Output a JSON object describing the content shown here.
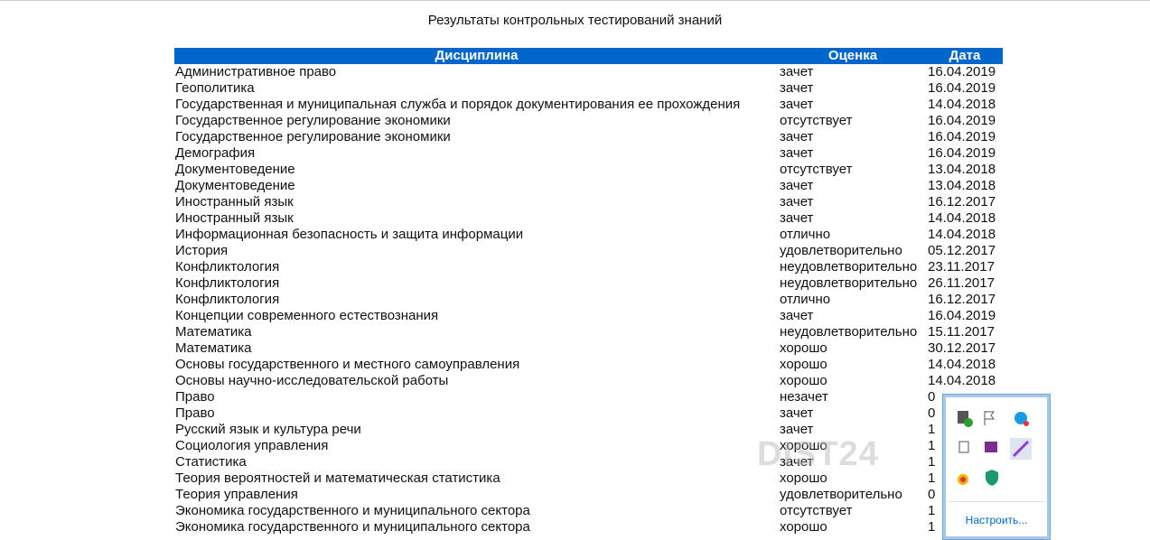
{
  "page": {
    "title": "Результаты контрольных тестирований знаний",
    "table": {
      "headers": [
        "Дисциплина",
        "Оценка",
        "Дата"
      ],
      "rows": [
        [
          "Административное право",
          "зачет",
          "16.04.2019"
        ],
        [
          "Геополитика",
          "зачет",
          "16.04.2019"
        ],
        [
          "Государственная и муниципальная служба и порядок документирования ее прохождения",
          "зачет",
          "14.04.2018"
        ],
        [
          "Государственное регулирование экономики",
          "отсутствует",
          "16.04.2019"
        ],
        [
          "Государственное регулирование экономики",
          "зачет",
          "16.04.2019"
        ],
        [
          "Демография",
          "зачет",
          "16.04.2019"
        ],
        [
          "Документоведение",
          "отсутствует",
          "13.04.2018"
        ],
        [
          "Документоведение",
          "зачет",
          "13.04.2018"
        ],
        [
          "Иностранный язык",
          "зачет",
          "16.12.2017"
        ],
        [
          "Иностранный язык",
          "зачет",
          "14.04.2018"
        ],
        [
          "Информационная безопасность и защита информации",
          "отлично",
          "14.04.2018"
        ],
        [
          "История",
          "удовлетворительно",
          "05.12.2017"
        ],
        [
          "Конфликтология",
          "неудовлетворительно",
          "23.11.2017"
        ],
        [
          "Конфликтология",
          "неудовлетворительно",
          "26.11.2017"
        ],
        [
          "Конфликтология",
          "отлично",
          "16.12.2017"
        ],
        [
          "Концепции современного естествознания",
          "зачет",
          "16.04.2019"
        ],
        [
          "Математика",
          "неудовлетворительно",
          "15.11.2017"
        ],
        [
          "Математика",
          "хорошо",
          "30.12.2017"
        ],
        [
          "Основы государственного и местного самоуправления",
          "хорошо",
          "14.04.2018"
        ],
        [
          "Основы научно-исследовательской работы",
          "хорошо",
          "14.04.2018"
        ],
        [
          "Право",
          "незачет",
          "0"
        ],
        [
          "Право",
          "зачет",
          "0"
        ],
        [
          "Русский язык и культура речи",
          "зачет",
          "1"
        ],
        [
          "Социология управления",
          "хорошо",
          "1"
        ],
        [
          "Статистика",
          "зачет",
          "1"
        ],
        [
          "Теория вероятностей и математическая статистика",
          "хорошо",
          "1"
        ],
        [
          "Теория управления",
          "удовлетворительно",
          "0"
        ],
        [
          "Экономика государственного и муниципального сектора",
          "отсутствует",
          "1"
        ],
        [
          "Экономика государственного и муниципального сектора",
          "хорошо",
          "1"
        ]
      ]
    },
    "watermark": "DIST24",
    "tray": {
      "link": "Настроить..."
    }
  }
}
